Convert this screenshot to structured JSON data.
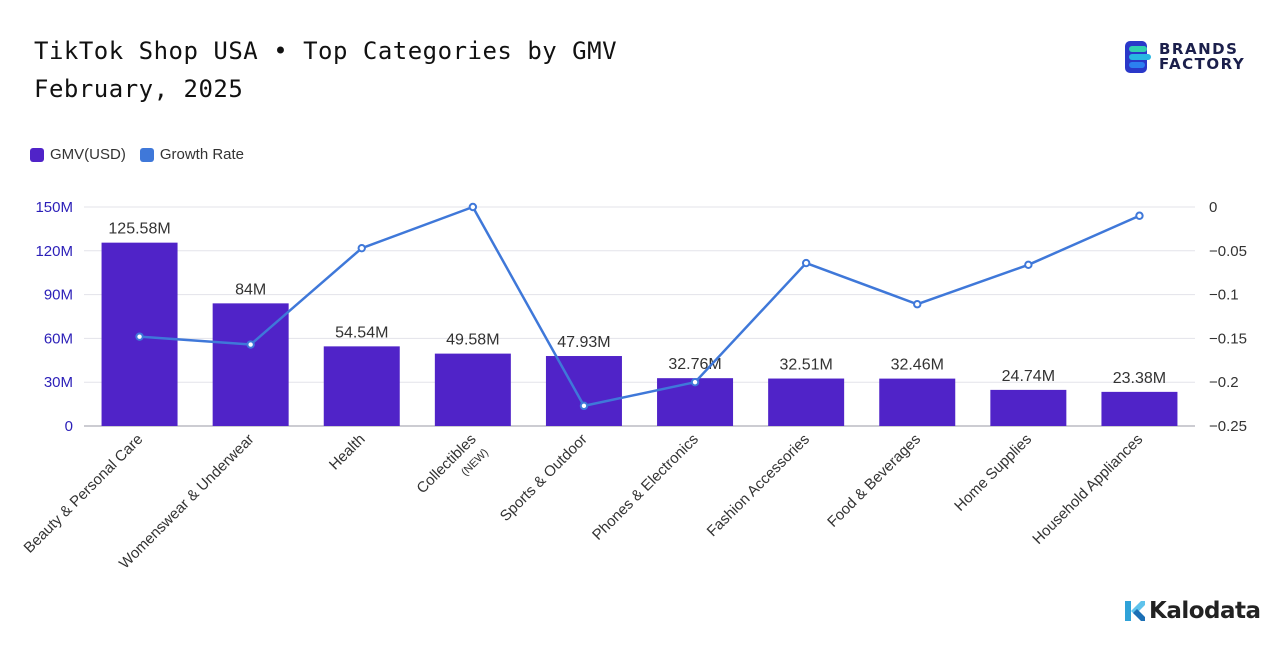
{
  "header": {
    "title_line1": "TikTok Shop USA • Top Categories by GMV",
    "title_line2": "February, 2025"
  },
  "brand_logo": {
    "line1": "BRANDS",
    "line2": "FACTORY"
  },
  "watermark": {
    "text": "Kalodata"
  },
  "colors": {
    "bar": "#5023c8",
    "line": "#3f78d9",
    "left_axis": "#2b1fb8",
    "grid": "#e3e3ea"
  },
  "chart_data": {
    "type": "bar",
    "categories": [
      "Beauty & Personal Care",
      "Womenswear & Underwear",
      "Health",
      "Collectibles",
      "Sports & Outdoor",
      "Phones & Electronics",
      "Fashion Accessories",
      "Food & Beverages",
      "Home Supplies",
      "Household Appliances"
    ],
    "category_notes": [
      "",
      "",
      "",
      "(NEW)",
      "",
      "",
      "",
      "",
      "",
      ""
    ],
    "series": [
      {
        "name": "GMV(USD)",
        "type": "bar",
        "axis": "left",
        "values": [
          125.58,
          84,
          54.54,
          49.58,
          47.93,
          32.76,
          32.51,
          32.46,
          24.74,
          23.38
        ],
        "labels": [
          "125.58M",
          "84M",
          "54.54M",
          "49.58M",
          "47.93M",
          "32.76M",
          "32.51M",
          "32.46M",
          "24.74M",
          "23.38M"
        ]
      },
      {
        "name": "Growth Rate",
        "type": "line",
        "axis": "right",
        "values": [
          -0.148,
          -0.157,
          -0.047,
          0.0,
          -0.227,
          -0.2,
          -0.064,
          -0.111,
          -0.066,
          -0.01
        ]
      }
    ],
    "y_left": {
      "min": 0,
      "max": 150,
      "ticks": [
        0,
        30,
        60,
        90,
        120,
        150
      ],
      "tick_labels": [
        "0",
        "30M",
        "60M",
        "90M",
        "120M",
        "150M"
      ]
    },
    "y_right": {
      "min": -0.25,
      "max": 0,
      "ticks": [
        0,
        -0.05,
        -0.1,
        -0.15,
        -0.2,
        -0.25
      ],
      "tick_labels": [
        "0",
        "−0.05",
        "−0.1",
        "−0.15",
        "−0.2",
        "−0.25"
      ]
    },
    "legend_position": "top-left",
    "grid": true
  }
}
